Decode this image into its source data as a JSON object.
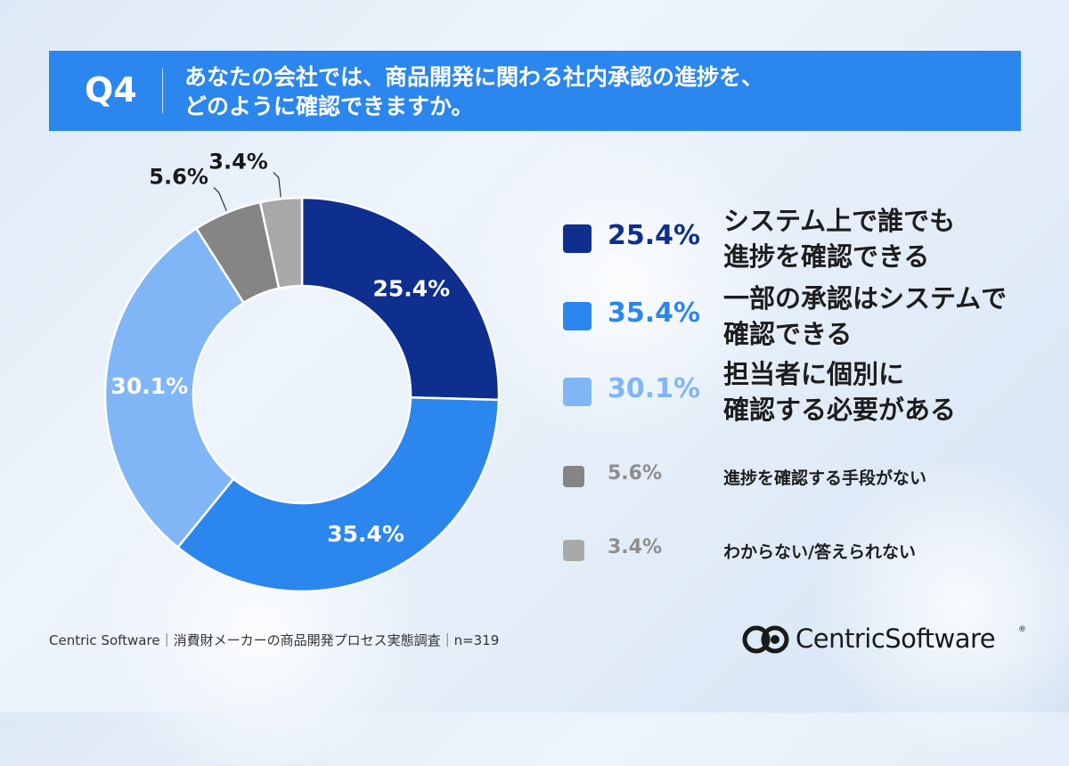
{
  "header": {
    "q_label": "Q4",
    "title_line1": "あなたの会社では、商品開発に関わる社内承認の進捗を、",
    "title_line2": "どのように確認できますか。",
    "bg_color": "#2b86ee"
  },
  "chart_data": {
    "type": "pie",
    "donut": true,
    "legend_position": "right",
    "categories": [
      "システム上で誰でも進捗を確認できる",
      "一部の承認はシステムで確認できる",
      "担当者に個別に確認する必要がある",
      "進捗を確認する手段がない",
      "わからない/答えられない"
    ],
    "values": [
      25.4,
      35.4,
      30.1,
      5.6,
      3.4
    ],
    "value_labels": [
      "25.4%",
      "35.4%",
      "30.1%",
      "5.6%",
      "3.4%"
    ],
    "colors": [
      "#0f2f8e",
      "#2b86ee",
      "#80b6f5",
      "#858585",
      "#a9a9a9"
    ],
    "legend": [
      {
        "pct": "25.4%",
        "line1": "システム上で誰でも",
        "line2": "進捗を確認できる",
        "pct_color": "#0f2f8e"
      },
      {
        "pct": "35.4%",
        "line1": "一部の承認はシステムで",
        "line2": "確認できる",
        "pct_color": "#2b86ee"
      },
      {
        "pct": "30.1%",
        "line1": "担当者に個別に",
        "line2": "確認する必要がある",
        "pct_color": "#80b6f5"
      },
      {
        "pct": "5.6%",
        "line1": "進捗を確認する手段がない"
      },
      {
        "pct": "3.4%",
        "line1": "わからない/答えられない"
      }
    ]
  },
  "footer": {
    "source": "Centric Software｜消費財メーカーの商品開発プロセス実態調査｜n=319",
    "logo_text": "CentricSoftware",
    "logo_reg": "®"
  }
}
